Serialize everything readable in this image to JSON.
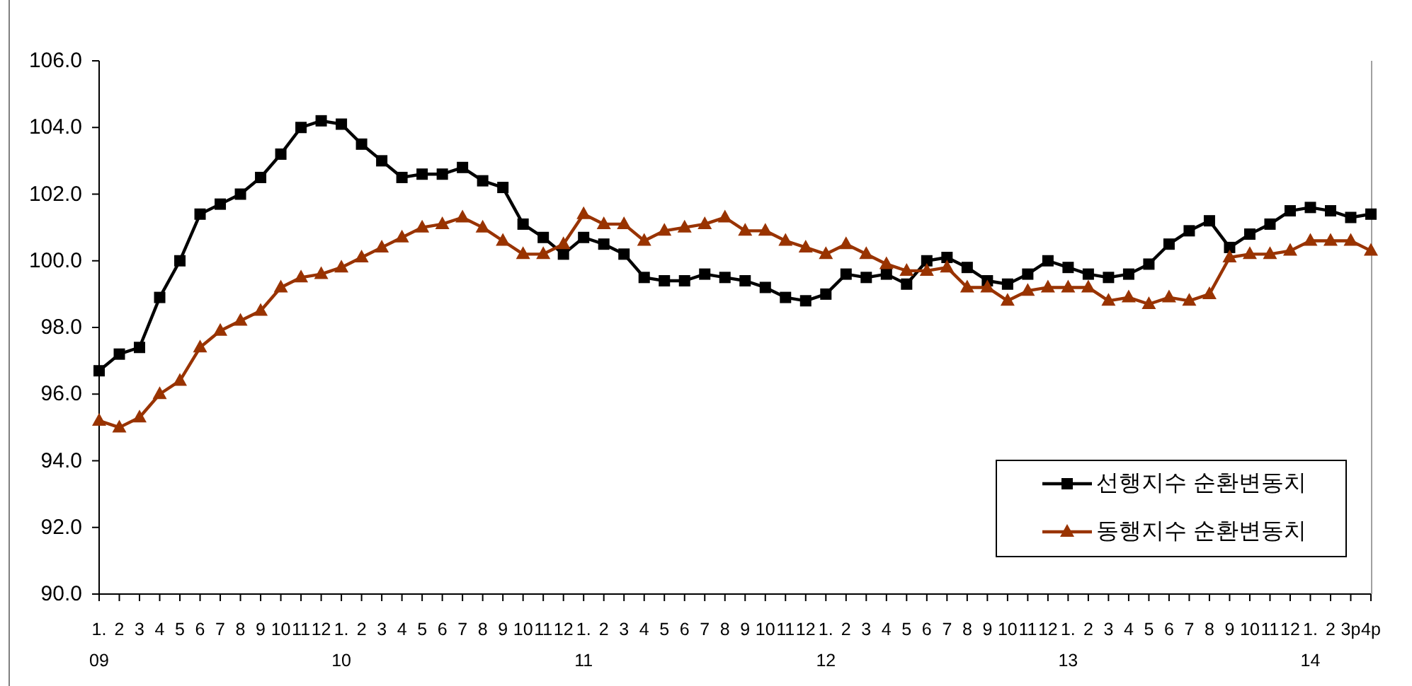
{
  "chart_data": {
    "type": "line",
    "categories": [
      "1.\n09",
      "2",
      "3",
      "4",
      "5",
      "6",
      "7",
      "8",
      "9",
      "10",
      "11",
      "12",
      "1.\n10",
      "2",
      "3",
      "4",
      "5",
      "6",
      "7",
      "8",
      "9",
      "10",
      "11",
      "12",
      "1.\n11",
      "2",
      "3",
      "4",
      "5",
      "6",
      "7",
      "8",
      "9",
      "10",
      "11",
      "12",
      "1.\n12",
      "2",
      "3",
      "4",
      "5",
      "6",
      "7",
      "8",
      "9",
      "10",
      "11",
      "12",
      "1.\n13",
      "2",
      "3",
      "4",
      "5",
      "6",
      "7",
      "8",
      "9",
      "10",
      "11",
      "12",
      "1.\n14",
      "2",
      "3p",
      "4p"
    ],
    "ylim": [
      90,
      106
    ],
    "yticks": [
      {
        "value": 90,
        "label": "90.0"
      },
      {
        "value": 92,
        "label": "92.0"
      },
      {
        "value": 94,
        "label": "94.0"
      },
      {
        "value": 96,
        "label": "96.0"
      },
      {
        "value": 98,
        "label": "98.0"
      },
      {
        "value": 100,
        "label": "100.0"
      },
      {
        "value": 102,
        "label": "102.0"
      },
      {
        "value": 104,
        "label": "104.0"
      },
      {
        "value": 106,
        "label": "106.0"
      }
    ],
    "series": [
      {
        "name": "선행지수 순환변동치",
        "color": "#000000",
        "marker": "square",
        "values": [
          96.7,
          97.2,
          97.4,
          98.9,
          100.0,
          101.4,
          101.7,
          102.0,
          102.5,
          103.2,
          104.0,
          104.2,
          104.1,
          103.5,
          103.0,
          102.5,
          102.6,
          102.6,
          102.8,
          102.4,
          102.2,
          101.1,
          100.7,
          100.2,
          100.7,
          100.5,
          100.2,
          99.5,
          99.4,
          99.4,
          99.6,
          99.5,
          99.4,
          99.2,
          98.9,
          98.8,
          99.0,
          99.6,
          99.5,
          99.6,
          99.3,
          100.0,
          100.1,
          99.8,
          99.4,
          99.3,
          99.6,
          100.0,
          99.8,
          99.6,
          99.5,
          99.6,
          99.9,
          100.5,
          100.9,
          101.2,
          100.4,
          100.8,
          101.1,
          101.5,
          101.6,
          101.5,
          101.3,
          101.4
        ]
      },
      {
        "name": "동행지수 순환변동치",
        "color": "#993300",
        "marker": "triangle",
        "values": [
          95.2,
          95.0,
          95.3,
          96.0,
          96.4,
          97.4,
          97.9,
          98.2,
          98.5,
          99.2,
          99.5,
          99.6,
          99.8,
          100.1,
          100.4,
          100.7,
          101.0,
          101.1,
          101.3,
          101.0,
          100.6,
          100.2,
          100.2,
          100.5,
          101.4,
          101.1,
          101.1,
          100.6,
          100.9,
          101.0,
          101.1,
          101.3,
          100.9,
          100.9,
          100.6,
          100.4,
          100.2,
          100.5,
          100.2,
          99.9,
          99.7,
          99.7,
          99.8,
          99.2,
          99.2,
          98.8,
          99.1,
          99.2,
          99.2,
          99.2,
          98.8,
          98.9,
          98.7,
          98.9,
          98.8,
          99.0,
          100.1,
          100.2,
          100.2,
          100.3,
          100.6,
          100.6,
          100.6,
          100.3
        ]
      }
    ],
    "legend": "bottom right"
  }
}
